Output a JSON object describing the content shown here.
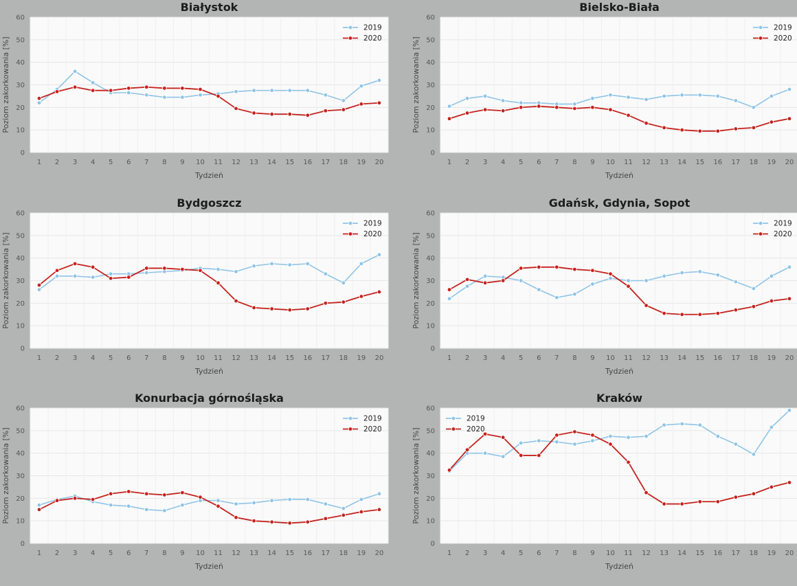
{
  "colors": {
    "s2019": "#8ec4e6",
    "s2020": "#c4221d",
    "plot_bg": "#fafafa",
    "page_bg": "#b3b5b4",
    "grid": "#e6e6e6"
  },
  "chart_data": [
    {
      "type": "line",
      "title": "Białystok",
      "xlabel": "Tydzień",
      "ylabel": "Poziom zakorkowania [%]",
      "ylim": [
        0,
        60
      ],
      "yticks": [
        0,
        10,
        20,
        30,
        40,
        50,
        60
      ],
      "grid": true,
      "legend": "top-right",
      "x": [
        1,
        2,
        3,
        4,
        5,
        6,
        7,
        8,
        9,
        10,
        11,
        12,
        13,
        14,
        15,
        16,
        17,
        18,
        19,
        20
      ],
      "series": [
        {
          "name": "2019",
          "values": [
            22,
            28,
            36,
            31,
            26.5,
            26.5,
            25.5,
            24.5,
            24.5,
            25.5,
            26,
            27,
            27.5,
            27.5,
            27.5,
            27.5,
            25.5,
            23,
            29.5,
            32
          ]
        },
        {
          "name": "2020",
          "values": [
            24,
            27,
            29,
            27.5,
            27.5,
            28.5,
            29,
            28.5,
            28.5,
            28,
            25,
            19.5,
            17.5,
            17,
            17,
            16.5,
            18.5,
            19,
            21.5,
            22
          ]
        }
      ]
    },
    {
      "type": "line",
      "title": "Bielsko-Biała",
      "xlabel": "Tydzień",
      "ylabel": "Poziom zakorkowania [%]",
      "ylim": [
        0,
        60
      ],
      "yticks": [
        0,
        10,
        20,
        30,
        40,
        50,
        60
      ],
      "grid": true,
      "legend": "top-right",
      "x": [
        1,
        2,
        3,
        4,
        5,
        6,
        7,
        8,
        9,
        10,
        11,
        12,
        13,
        14,
        15,
        16,
        17,
        18,
        19,
        20
      ],
      "series": [
        {
          "name": "2019",
          "values": [
            20.5,
            24,
            25,
            23,
            22,
            22,
            21.5,
            21.5,
            24,
            25.5,
            24.5,
            23.5,
            25,
            25.5,
            25.5,
            25,
            23,
            20,
            25,
            28
          ]
        },
        {
          "name": "2020",
          "values": [
            15,
            17.5,
            19,
            18.5,
            20,
            20.5,
            20,
            19.5,
            20,
            19,
            16.5,
            13,
            11,
            10,
            9.5,
            9.5,
            10.5,
            11,
            13.5,
            15
          ]
        }
      ]
    },
    {
      "type": "line",
      "title": "Bydgoszcz",
      "xlabel": "Tydzień",
      "ylabel": "Poziom zakorkowania [%]",
      "ylim": [
        0,
        60
      ],
      "yticks": [
        0,
        10,
        20,
        30,
        40,
        50,
        60
      ],
      "grid": true,
      "legend": "top-right",
      "x": [
        1,
        2,
        3,
        4,
        5,
        6,
        7,
        8,
        9,
        10,
        11,
        12,
        13,
        14,
        15,
        16,
        17,
        18,
        19,
        20
      ],
      "series": [
        {
          "name": "2019",
          "values": [
            26,
            32,
            32,
            31.5,
            33,
            33,
            33.5,
            34,
            34.5,
            35.5,
            35,
            34,
            36.5,
            37.5,
            37,
            37.5,
            33,
            29,
            37.5,
            41.5
          ]
        },
        {
          "name": "2020",
          "values": [
            28,
            34.5,
            37.5,
            36,
            31,
            31.5,
            35.5,
            35.5,
            35,
            34.5,
            29,
            21,
            18,
            17.5,
            17,
            17.5,
            20,
            20.5,
            23,
            25
          ]
        }
      ]
    },
    {
      "type": "line",
      "title": "Gdańsk, Gdynia, Sopot",
      "xlabel": "Tydzień",
      "ylabel": "Poziom zakorkowania [%]",
      "ylim": [
        0,
        60
      ],
      "yticks": [
        0,
        10,
        20,
        30,
        40,
        50,
        60
      ],
      "grid": true,
      "legend": "top-right",
      "x": [
        1,
        2,
        3,
        4,
        5,
        6,
        7,
        8,
        9,
        10,
        11,
        12,
        13,
        14,
        15,
        16,
        17,
        18,
        19,
        20
      ],
      "series": [
        {
          "name": "2019",
          "values": [
            22,
            27.5,
            32,
            31.5,
            30,
            26,
            22.5,
            24,
            28.5,
            31,
            30,
            30,
            32,
            33.5,
            34,
            32.5,
            29.5,
            26.5,
            32,
            36
          ]
        },
        {
          "name": "2020",
          "values": [
            26,
            30.5,
            29,
            30,
            35.5,
            36,
            36,
            35,
            34.5,
            33,
            27.5,
            19,
            15.5,
            15,
            15,
            15.5,
            17,
            18.5,
            21,
            22
          ]
        }
      ]
    },
    {
      "type": "line",
      "title": "Konurbacja górnośląska",
      "xlabel": "Tydzień",
      "ylabel": "Poziom zakorkowania [%]",
      "ylim": [
        0,
        60
      ],
      "yticks": [
        0,
        10,
        20,
        30,
        40,
        50,
        60
      ],
      "grid": true,
      "legend": "top-right",
      "x": [
        1,
        2,
        3,
        4,
        5,
        6,
        7,
        8,
        9,
        10,
        11,
        12,
        13,
        14,
        15,
        16,
        17,
        18,
        19,
        20
      ],
      "series": [
        {
          "name": "2019",
          "values": [
            17,
            19.5,
            21,
            18.5,
            17,
            16.5,
            15,
            14.5,
            17,
            19,
            19,
            17.5,
            18,
            19,
            19.5,
            19.5,
            17.5,
            15.5,
            19.5,
            22
          ]
        },
        {
          "name": "2020",
          "values": [
            15,
            19,
            20,
            19.5,
            22,
            23,
            22,
            21.5,
            22.5,
            20.5,
            16.5,
            11.5,
            10,
            9.5,
            9,
            9.5,
            11,
            12.5,
            14,
            15
          ]
        }
      ]
    },
    {
      "type": "line",
      "title": "Kraków",
      "xlabel": "Tydzień",
      "ylabel": "Poziom zakorkowania [%]",
      "ylim": [
        0,
        60
      ],
      "yticks": [
        0,
        10,
        20,
        30,
        40,
        50,
        60
      ],
      "grid": true,
      "legend": "top-left",
      "x": [
        1,
        2,
        3,
        4,
        5,
        6,
        7,
        8,
        9,
        10,
        11,
        12,
        13,
        14,
        15,
        16,
        17,
        18,
        19,
        20
      ],
      "series": [
        {
          "name": "2019",
          "values": [
            32,
            40,
            40,
            38.5,
            44.5,
            45.5,
            45,
            44,
            45.5,
            47.5,
            47,
            47.5,
            52.5,
            53,
            52.5,
            47.5,
            44,
            39.5,
            51.5,
            59
          ]
        },
        {
          "name": "2020",
          "values": [
            32.5,
            41.5,
            48.5,
            47,
            39,
            39,
            48,
            49.5,
            48,
            44,
            36,
            22.5,
            17.5,
            17.5,
            18.5,
            18.5,
            20.5,
            22,
            25,
            27
          ]
        }
      ]
    }
  ]
}
